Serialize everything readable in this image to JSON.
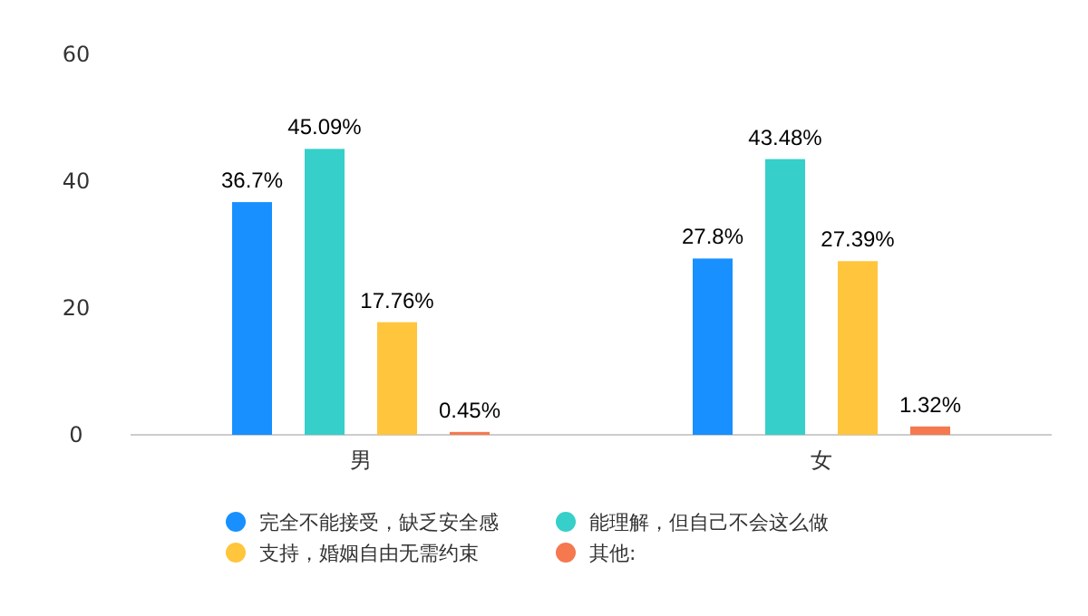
{
  "chart_data": {
    "type": "bar",
    "categories": [
      "男",
      "女"
    ],
    "series": [
      {
        "name": "完全不能接受，缺乏安全感",
        "color": "#1890ff",
        "values": [
          36.7,
          27.8
        ],
        "value_labels": [
          "36.7%",
          "27.8%"
        ]
      },
      {
        "name": "能理解，但自己不会这么做",
        "color": "#36cfc9",
        "values": [
          45.09,
          43.48
        ],
        "value_labels": [
          "45.09%",
          "43.48%"
        ]
      },
      {
        "name": "支持，婚姻自由无需约束",
        "color": "#ffc53d",
        "values": [
          17.76,
          27.39
        ],
        "value_labels": [
          "17.76%",
          "27.39%"
        ]
      },
      {
        "name": "其他:",
        "color": "#f5784f",
        "values": [
          0.45,
          1.32
        ],
        "value_labels": [
          "0.45%",
          "1.32%"
        ]
      }
    ],
    "ylim": [
      0,
      60
    ],
    "yticks": [
      0,
      20,
      40,
      60
    ],
    "grid": false,
    "legend": "bottom"
  }
}
